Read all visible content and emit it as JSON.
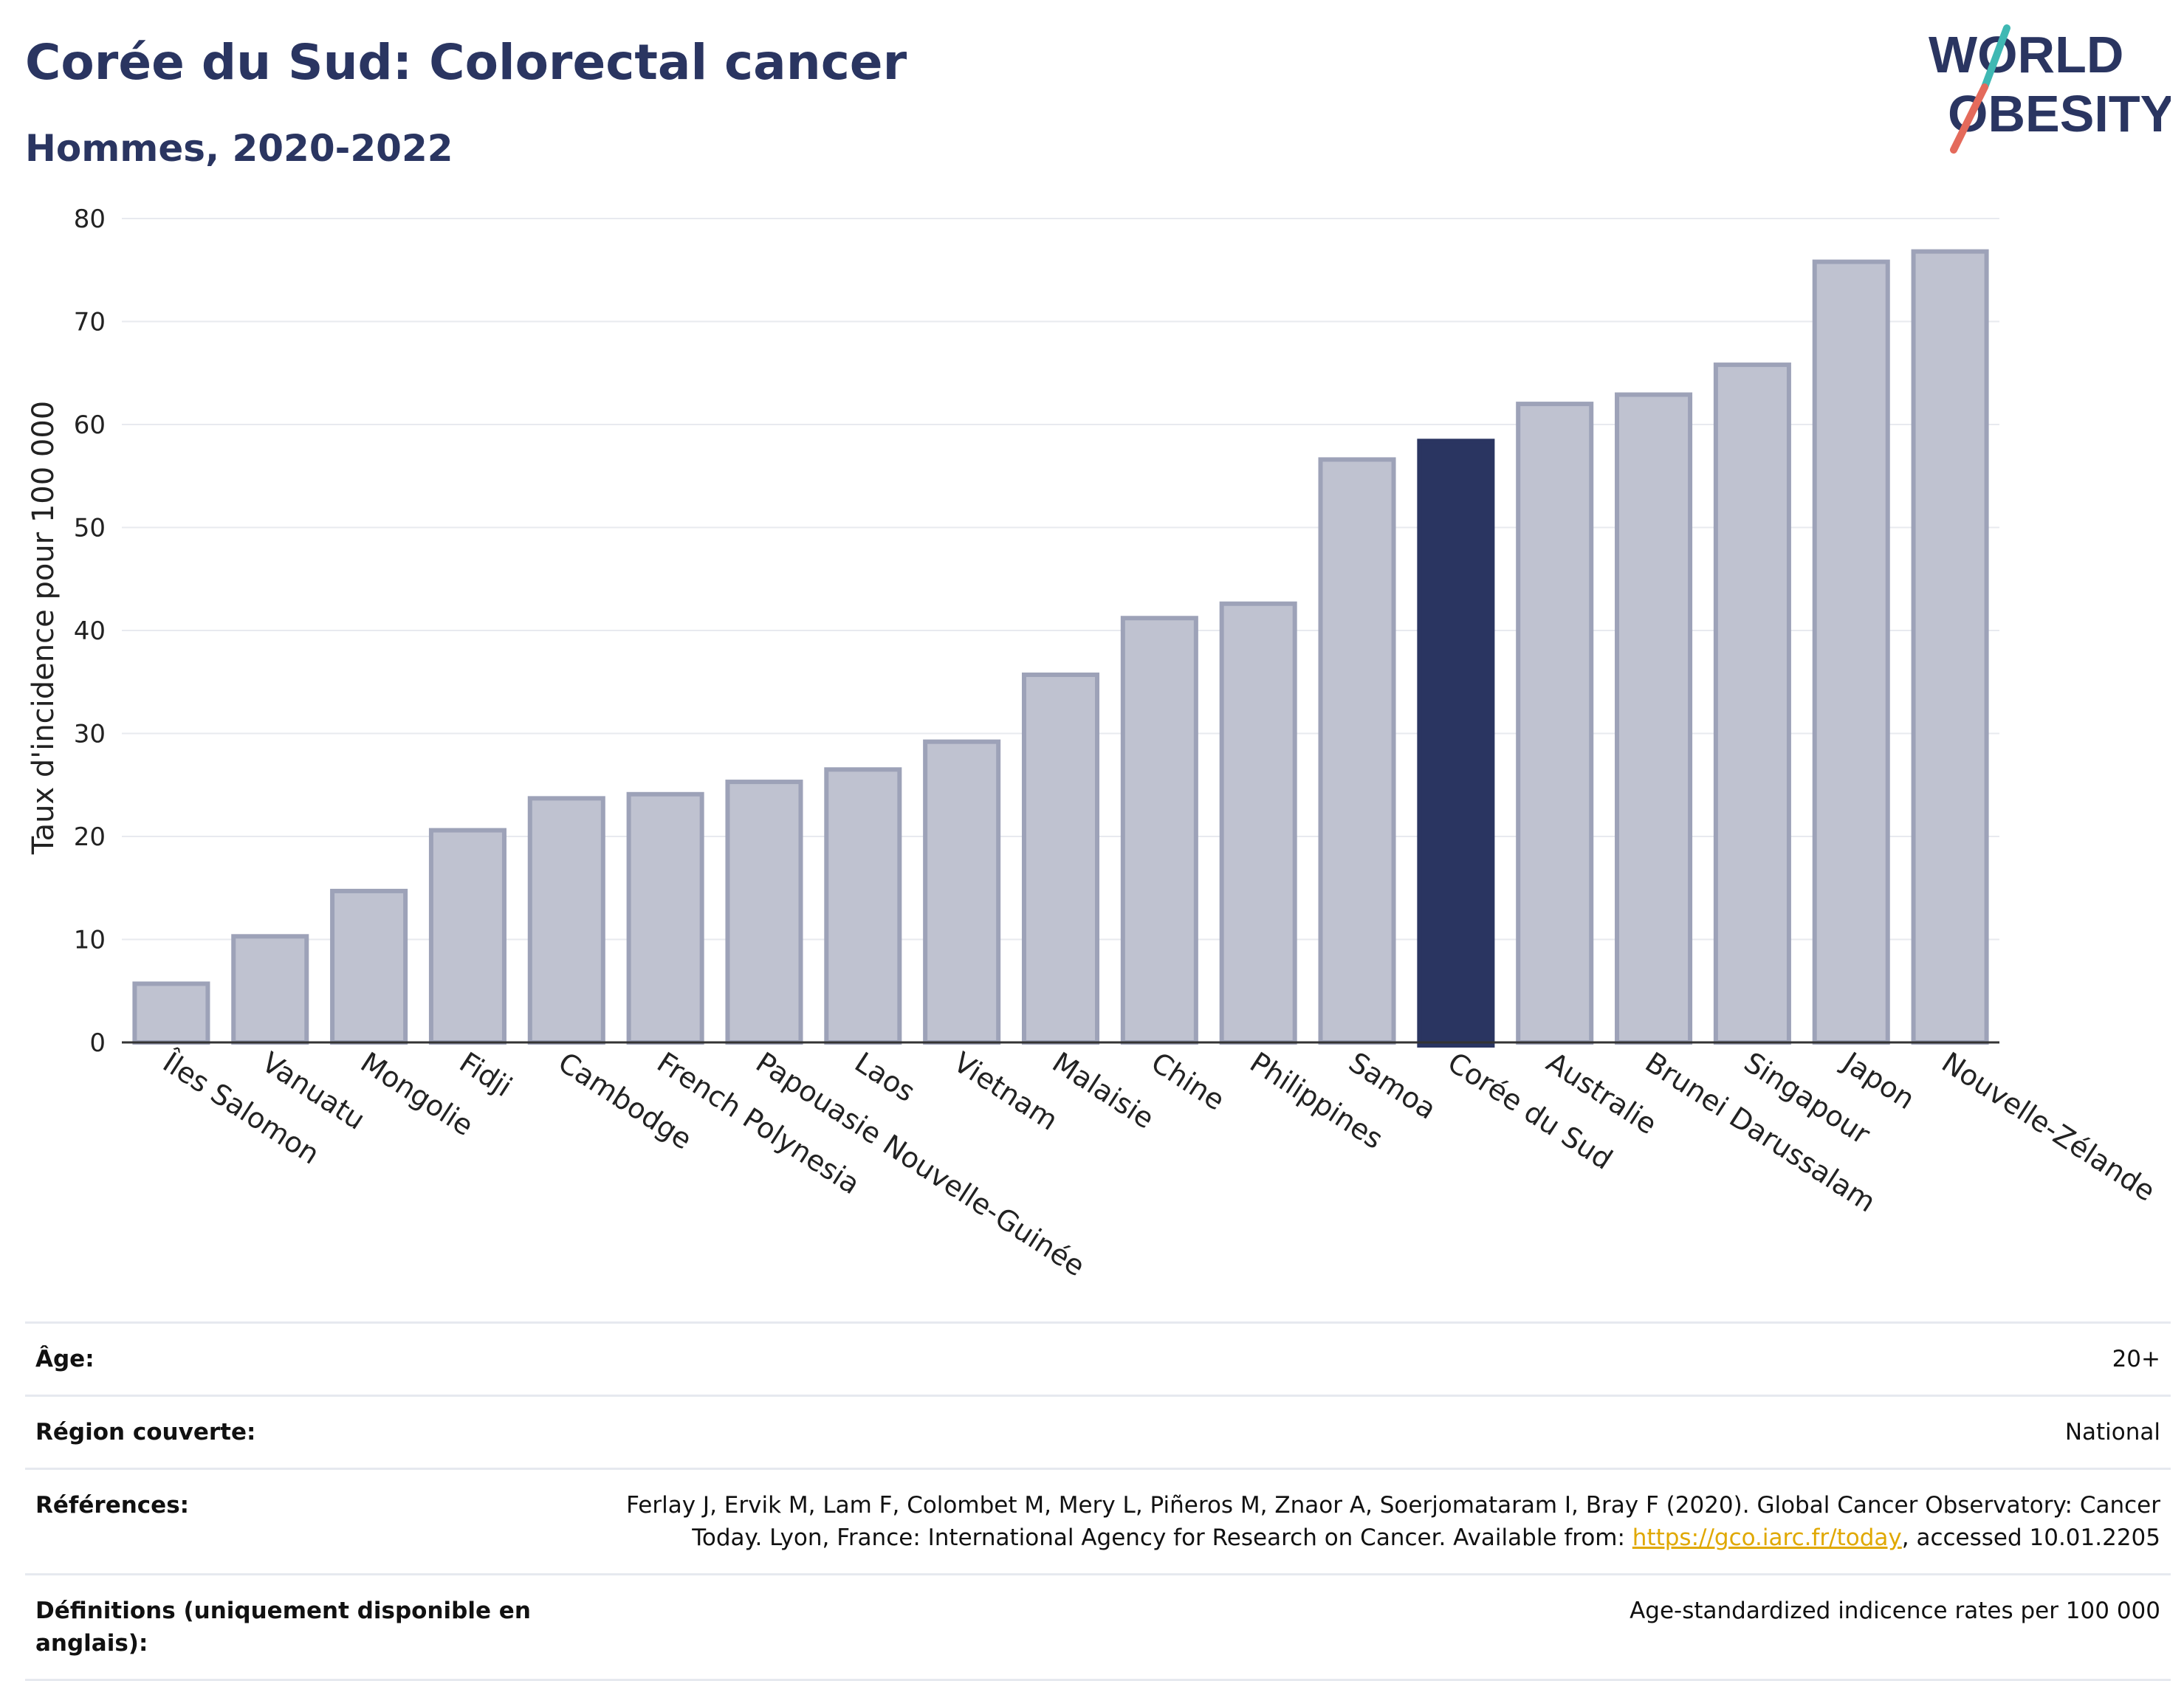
{
  "header": {
    "title": "Corée du Sud: Colorectal cancer",
    "subtitle": "Hommes, 2020-2022",
    "logo_text_line1": "WORLD",
    "logo_text_line2": "OBESITY"
  },
  "colors": {
    "brand": "#2a3561",
    "bar_default": "#bfc2d0",
    "bar_border": "#9da2b8",
    "bar_highlight": "#2a3561",
    "logo_teal": "#3fb8b3",
    "logo_coral": "#e46a5b",
    "link": "#e0a800"
  },
  "chart_data": {
    "type": "bar",
    "ylabel": "Taux d'incidence pour 100 000",
    "ylim": [
      0,
      80
    ],
    "yticks": [
      0,
      10,
      20,
      30,
      40,
      50,
      60,
      70,
      80
    ],
    "grid": true,
    "highlight": "Corée du Sud",
    "categories": [
      "Îles Salomon",
      "Vanuatu",
      "Mongolie",
      "Fidji",
      "Cambodge",
      "French Polynesia",
      "Papouasie Nouvelle-Guinée",
      "Laos",
      "Vietnam",
      "Malaisie",
      "Chine",
      "Philippines",
      "Samoa",
      "Corée du Sud",
      "Australie",
      "Brunei Darussalam",
      "Singapour",
      "Japon",
      "Nouvelle-Zélande"
    ],
    "values": [
      5.7,
      10.3,
      14.7,
      20.6,
      23.7,
      24.1,
      25.3,
      26.5,
      29.2,
      35.7,
      41.2,
      42.6,
      56.6,
      58.4,
      62.0,
      62.9,
      65.8,
      75.8,
      76.8
    ]
  },
  "meta": {
    "age_label": "Âge:",
    "age_value": "20+",
    "region_label": "Région couverte:",
    "region_value": "National",
    "refs_label": "Références:",
    "refs_text_1": "Ferlay J, Ervik M, Lam F, Colombet M, Mery L, Piñeros M, Znaor A, Soerjomataram I, Bray F (2020). Global Cancer Observatory: Cancer Today. Lyon, France: International Agency for Research on Cancer. Available from: ",
    "refs_link": "https://gco.iarc.fr/today",
    "refs_text_2": ", accessed 10.01.2205",
    "defs_label": "Définitions (uniquement disponible en anglais):",
    "defs_value": "Age-standardized indicence rates per 100 000"
  }
}
